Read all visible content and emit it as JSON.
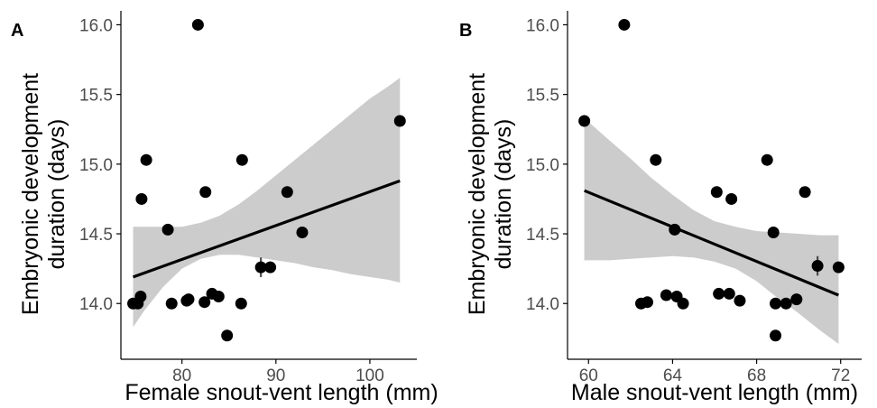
{
  "colors": {
    "ribbon": "#cccccc",
    "points": "#000000",
    "line": "#000000",
    "errorbars": "#4d4d4d",
    "axis": "#000000",
    "tick_text": "#4d4d4d"
  },
  "chart_data": [
    {
      "panel_label": "A",
      "type": "scatter",
      "xlabel": "Female snout-vent length (mm)",
      "ylabel": "Embryonic development duration (days)",
      "ylabel_lines": [
        "Embryonic development",
        "duration (days)"
      ],
      "xlim": [
        73.5,
        105
      ],
      "ylim": [
        13.6,
        16.1
      ],
      "xticks": [
        80,
        90,
        100
      ],
      "yticks": [
        14.0,
        14.5,
        15.0,
        15.5,
        16.0
      ],
      "ytick_labels": [
        "14.0",
        "14.5",
        "15.0",
        "15.5",
        "16.0"
      ],
      "points": [
        {
          "x": 74.8,
          "y": 14.0
        },
        {
          "x": 75.3,
          "y": 14.0
        },
        {
          "x": 75.6,
          "y": 14.05,
          "err": 0.02
        },
        {
          "x": 75.7,
          "y": 14.75
        },
        {
          "x": 76.2,
          "y": 15.03
        },
        {
          "x": 78.5,
          "y": 14.53,
          "err": 0.04
        },
        {
          "x": 78.9,
          "y": 14.0
        },
        {
          "x": 80.5,
          "y": 14.02
        },
        {
          "x": 80.7,
          "y": 14.03
        },
        {
          "x": 81.7,
          "y": 16.0
        },
        {
          "x": 82.4,
          "y": 14.01
        },
        {
          "x": 82.5,
          "y": 14.8,
          "err": 0.04
        },
        {
          "x": 83.2,
          "y": 14.07
        },
        {
          "x": 83.9,
          "y": 14.05
        },
        {
          "x": 84.8,
          "y": 13.77
        },
        {
          "x": 86.3,
          "y": 14.0
        },
        {
          "x": 86.4,
          "y": 15.03
        },
        {
          "x": 88.4,
          "y": 14.26,
          "err": 0.07
        },
        {
          "x": 89.4,
          "y": 14.26
        },
        {
          "x": 91.2,
          "y": 14.8,
          "err": 0.02
        },
        {
          "x": 92.8,
          "y": 14.51,
          "err": 0.04
        },
        {
          "x": 103.2,
          "y": 15.31,
          "err": 0.02
        }
      ],
      "fit_line": {
        "x": [
          74.8,
          103.2
        ],
        "y": [
          14.19,
          14.88
        ]
      },
      "ribbon": {
        "x": [
          74.8,
          76,
          78,
          80,
          82,
          84,
          86,
          88,
          90,
          92,
          94,
          96,
          98,
          100,
          102,
          103.2
        ],
        "lower": [
          13.83,
          13.95,
          14.12,
          14.25,
          14.32,
          14.35,
          14.35,
          14.33,
          14.31,
          14.29,
          14.26,
          14.24,
          14.21,
          14.19,
          14.17,
          14.15
        ],
        "upper": [
          14.55,
          14.55,
          14.55,
          14.55,
          14.58,
          14.63,
          14.71,
          14.81,
          14.92,
          15.03,
          15.14,
          15.25,
          15.36,
          15.47,
          15.56,
          15.62
        ]
      }
    },
    {
      "panel_label": "B",
      "type": "scatter",
      "xlabel": "Male snout-vent length (mm)",
      "ylabel": "Embryonic development duration (days)",
      "ylabel_lines": [
        "Embryonic development",
        "duration (days)"
      ],
      "xlim": [
        59,
        73
      ],
      "ylim": [
        13.6,
        16.1
      ],
      "xticks": [
        60,
        64,
        68,
        72
      ],
      "yticks": [
        14.0,
        14.5,
        15.0,
        15.5,
        16.0
      ],
      "ytick_labels": [
        "14.0",
        "14.5",
        "15.0",
        "15.5",
        "16.0"
      ],
      "points": [
        {
          "x": 59.8,
          "y": 15.31,
          "err": 0.02
        },
        {
          "x": 61.7,
          "y": 16.0
        },
        {
          "x": 62.5,
          "y": 14.0
        },
        {
          "x": 62.8,
          "y": 14.01
        },
        {
          "x": 63.2,
          "y": 15.03
        },
        {
          "x": 63.7,
          "y": 14.06
        },
        {
          "x": 64.1,
          "y": 14.53,
          "err": 0.04
        },
        {
          "x": 64.2,
          "y": 14.05
        },
        {
          "x": 64.5,
          "y": 14.0
        },
        {
          "x": 66.1,
          "y": 14.8,
          "err": 0.02
        },
        {
          "x": 66.2,
          "y": 14.07
        },
        {
          "x": 66.7,
          "y": 14.07
        },
        {
          "x": 66.8,
          "y": 14.75
        },
        {
          "x": 67.2,
          "y": 14.02
        },
        {
          "x": 68.5,
          "y": 15.03
        },
        {
          "x": 68.8,
          "y": 14.51,
          "err": 0.04
        },
        {
          "x": 68.9,
          "y": 14.0
        },
        {
          "x": 68.9,
          "y": 13.77
        },
        {
          "x": 69.4,
          "y": 14.0
        },
        {
          "x": 69.9,
          "y": 14.03
        },
        {
          "x": 70.3,
          "y": 14.8,
          "err": 0.04
        },
        {
          "x": 70.9,
          "y": 14.27,
          "err": 0.07
        },
        {
          "x": 71.9,
          "y": 14.26
        }
      ],
      "fit_line": {
        "x": [
          59.8,
          71.9
        ],
        "y": [
          14.81,
          14.06
        ]
      },
      "ribbon": {
        "x": [
          59.8,
          61,
          62,
          63,
          64,
          65,
          66,
          67,
          68,
          69,
          70,
          71,
          71.9
        ],
        "lower": [
          14.31,
          14.31,
          14.32,
          14.33,
          14.34,
          14.33,
          14.3,
          14.25,
          14.16,
          14.04,
          13.93,
          13.81,
          13.71
        ],
        "upper": [
          15.33,
          15.17,
          15.04,
          14.9,
          14.78,
          14.67,
          14.59,
          14.55,
          14.52,
          14.51,
          14.5,
          14.49,
          14.49
        ]
      }
    }
  ]
}
